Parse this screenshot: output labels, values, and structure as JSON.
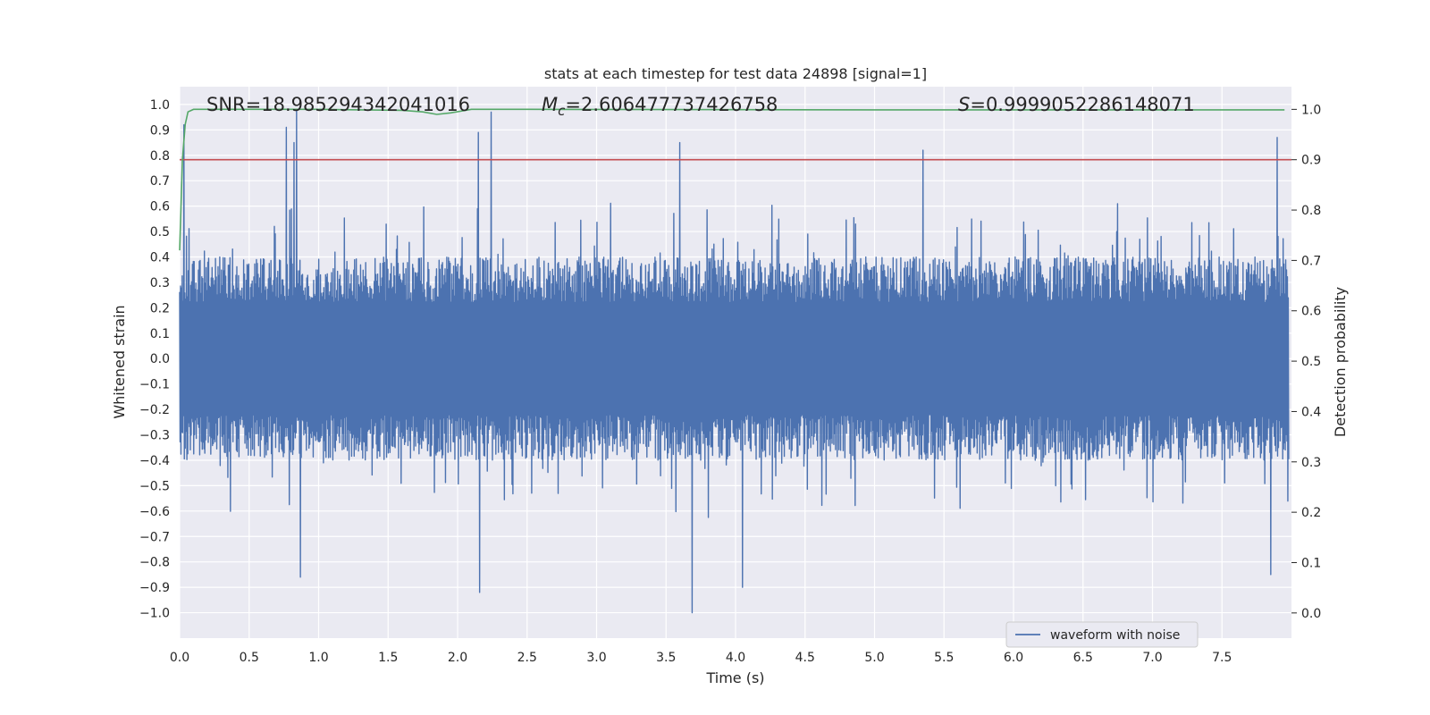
{
  "chart_data": {
    "type": "line",
    "title": "stats at each timestep for test data 24898 [signal=1]",
    "xlabel": "Time (s)",
    "ylabel_left": "Whitened strain",
    "ylabel_right": "Detection probability",
    "xlim": [
      0.0,
      8.0
    ],
    "ylim_left": [
      -1.1,
      1.07
    ],
    "ylim_right": [
      -0.05,
      1.045
    ],
    "x_ticks": [
      "0.0",
      "0.5",
      "1.0",
      "1.5",
      "2.0",
      "2.5",
      "3.0",
      "3.5",
      "4.0",
      "4.5",
      "5.0",
      "5.5",
      "6.0",
      "6.5",
      "7.0",
      "7.5"
    ],
    "y_ticks_left": [
      "1.0",
      "0.9",
      "0.8",
      "0.7",
      "0.6",
      "0.5",
      "0.4",
      "0.3",
      "0.2",
      "0.1",
      "0.0",
      "−0.1",
      "−0.2",
      "−0.3",
      "−0.4",
      "−0.5",
      "−0.6",
      "−0.7",
      "−0.8",
      "−0.9",
      "−1.0"
    ],
    "y_ticks_right": [
      "1.0",
      "0.9",
      "0.8",
      "0.7",
      "0.6",
      "0.5",
      "0.4",
      "0.3",
      "0.2",
      "0.1",
      "0.0"
    ],
    "annotations": {
      "snr": "SNR=18.985294342041016",
      "mc_label": "M",
      "mc_sub": "c",
      "mc_value": "=2.606477737426758",
      "s_label": "S",
      "s_value": "=0.9999052286148071"
    },
    "legend": [
      "waveform with noise"
    ],
    "series": [
      {
        "name": "waveform with noise",
        "axis": "left",
        "color": "#4c72b0",
        "description": "whitened strain noise, dense oscillation",
        "envelope_peaks": [
          {
            "x": 0.03,
            "y": 0.92
          },
          {
            "x": 0.77,
            "y": 0.91
          },
          {
            "x": 0.82,
            "y": 0.85
          },
          {
            "x": 0.84,
            "y": 0.98
          },
          {
            "x": 2.15,
            "y": 0.89
          },
          {
            "x": 2.24,
            "y": 0.97
          },
          {
            "x": 3.6,
            "y": 0.85
          },
          {
            "x": 5.35,
            "y": 0.82
          },
          {
            "x": 7.9,
            "y": 0.87
          },
          {
            "x": 0.87,
            "y": -0.86
          },
          {
            "x": 2.16,
            "y": -0.92
          },
          {
            "x": 3.69,
            "y": -1.0
          },
          {
            "x": 4.05,
            "y": -0.9
          },
          {
            "x": 7.85,
            "y": -0.85
          }
        ],
        "typical_range": [
          -0.55,
          0.55
        ]
      },
      {
        "name": "detection probability",
        "axis": "right",
        "color": "#55a868",
        "x": [
          0.0,
          0.02,
          0.04,
          0.06,
          0.1,
          0.15,
          0.3,
          1.0,
          1.6,
          1.75,
          1.85,
          1.95,
          2.1,
          2.5,
          5.0,
          7.95
        ],
        "y": [
          0.72,
          0.9,
          0.97,
          0.995,
          1.0,
          1.0,
          1.0,
          1.0,
          0.998,
          0.995,
          0.99,
          0.993,
          1.0,
          1.0,
          0.999,
          0.999
        ]
      },
      {
        "name": "threshold",
        "axis": "right",
        "color": "#c44e52",
        "x": [
          0.0,
          8.0
        ],
        "y": [
          0.9,
          0.9
        ]
      }
    ]
  }
}
